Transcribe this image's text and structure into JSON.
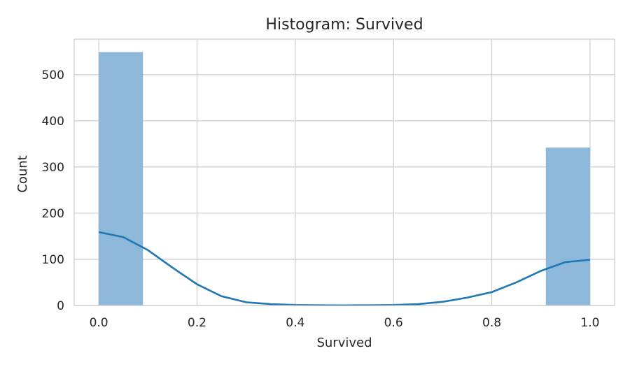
{
  "chart_data": {
    "type": "bar",
    "title": "Histogram: Survived",
    "xlabel": "Survived",
    "ylabel": "Count",
    "xlim": [
      -0.05,
      1.05
    ],
    "ylim": [
      0,
      577
    ],
    "xticks": [
      0.0,
      0.2,
      0.4,
      0.6,
      0.8,
      1.0
    ],
    "xtick_labels": [
      "0.0",
      "0.2",
      "0.4",
      "0.6",
      "0.8",
      "1.0"
    ],
    "yticks": [
      0,
      100,
      200,
      300,
      400,
      500
    ],
    "ytick_labels": [
      "0",
      "100",
      "200",
      "300",
      "400",
      "500"
    ],
    "grid": true,
    "bins": [
      {
        "x0": 0.0,
        "x1": 0.09,
        "count": 549
      },
      {
        "x0": 0.91,
        "x1": 1.0,
        "count": 342
      }
    ],
    "kde": {
      "x": [
        0.0,
        0.05,
        0.1,
        0.15,
        0.2,
        0.25,
        0.3,
        0.35,
        0.4,
        0.45,
        0.5,
        0.55,
        0.6,
        0.65,
        0.7,
        0.75,
        0.8,
        0.85,
        0.9,
        0.95,
        1.0
      ],
      "y": [
        159,
        148,
        120,
        82,
        46,
        20,
        7,
        3,
        1,
        0.5,
        0.4,
        0.5,
        1,
        3,
        8,
        17,
        29,
        50,
        75,
        94,
        99
      ]
    },
    "colors": {
      "bar": "#8db8d9",
      "kde": "#1f77b4"
    }
  }
}
